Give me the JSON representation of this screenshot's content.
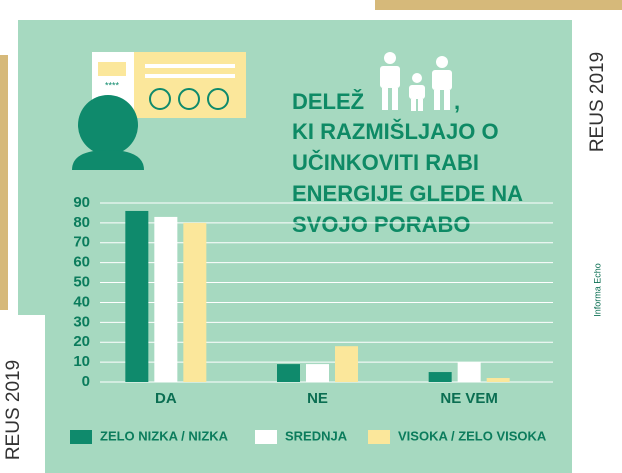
{
  "chart_data": {
    "type": "bar",
    "title": {
      "lead": "DELEŽ",
      "comma": ",",
      "lines": [
        "KI RAZMIŠLJAJO O",
        "UČINKOVITI RABI",
        "ENERGIJE GLEDE NA",
        "SVOJO PORABO"
      ]
    },
    "categories": [
      "DA",
      "NE",
      "NE VEM"
    ],
    "series": [
      {
        "name": "ZELO NIZKA / NIZKA",
        "color": "#0f8a6c",
        "values": [
          86,
          9,
          5
        ]
      },
      {
        "name": "SREDNJA",
        "color": "#ffffff",
        "values": [
          83,
          9,
          10
        ]
      },
      {
        "name": "VISOKA / ZELO VISOKA",
        "color": "#fbe79b",
        "values": [
          80,
          18,
          2
        ]
      }
    ],
    "ylim": [
      0,
      90
    ],
    "yticks": [
      0,
      10,
      20,
      30,
      40,
      50,
      60,
      70,
      80,
      90
    ],
    "grid": true,
    "legend": "bottom"
  },
  "decor": {
    "badge_right": "REUS 2019",
    "badge_left": "REUS 2019",
    "credit": "Informa Echo",
    "stars": "****"
  }
}
